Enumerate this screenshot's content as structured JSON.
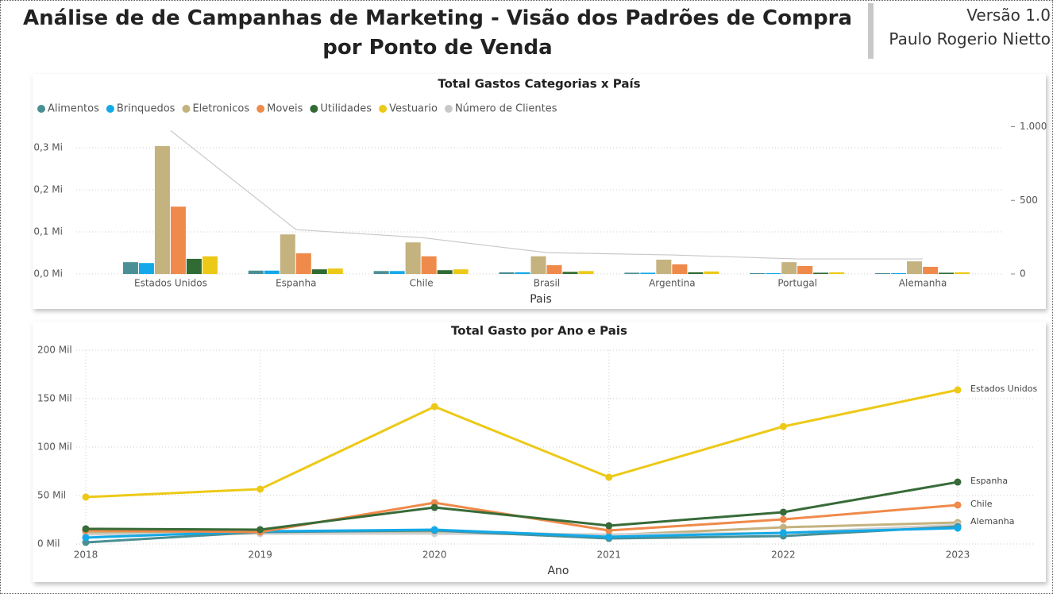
{
  "header": {
    "title": "Análise de de Campanhas de Marketing - Visão dos Padrões de Compra por Ponto de Venda",
    "version": "Versão 1.0",
    "author": "Paulo Rogerio Nietto"
  },
  "chart_data": [
    {
      "type": "bar",
      "title": "Total Gastos Categorias x País",
      "x_label": "Pais",
      "categories": [
        "Estados Unidos",
        "Espanha",
        "Chile",
        "Brasil",
        "Argentina",
        "Portugal",
        "Alemanha"
      ],
      "series": [
        {
          "name": "Alimentos",
          "color": "#4a8f94",
          "values": [
            0.028,
            0.008,
            0.007,
            0.004,
            0.003,
            0.002,
            0.002
          ]
        },
        {
          "name": "Brinquedos",
          "color": "#13a9e8",
          "values": [
            0.026,
            0.008,
            0.007,
            0.004,
            0.003,
            0.002,
            0.002
          ]
        },
        {
          "name": "Eletronicos",
          "color": "#c4b27f",
          "values": [
            0.304,
            0.094,
            0.075,
            0.042,
            0.034,
            0.028,
            0.03
          ]
        },
        {
          "name": "Moveis",
          "color": "#ef8a4a",
          "values": [
            0.16,
            0.049,
            0.042,
            0.021,
            0.023,
            0.019,
            0.017
          ]
        },
        {
          "name": "Utilidades",
          "color": "#2f6b33",
          "values": [
            0.036,
            0.011,
            0.009,
            0.005,
            0.004,
            0.003,
            0.003
          ]
        },
        {
          "name": "Vestuario",
          "color": "#edc917",
          "values": [
            0.042,
            0.013,
            0.011,
            0.007,
            0.006,
            0.004,
            0.004
          ]
        },
        {
          "name": "Número de Clientes",
          "color": "#c8c8c8",
          "type": "line",
          "axis": "y2",
          "values": [
            973,
            301,
            247,
            145,
            129,
            102,
            102
          ]
        }
      ],
      "ylim": [
        0,
        0.35
      ],
      "yticks": [
        {
          "value": 0,
          "label": "0,0 Mi"
        },
        {
          "value": 0.1,
          "label": "0,1 Mi"
        },
        {
          "value": 0.2,
          "label": "0,2 Mi"
        },
        {
          "value": 0.3,
          "label": "0,3 Mi"
        }
      ],
      "y2lim": [
        0,
        1000
      ],
      "y2ticks": [
        0,
        500,
        {
          "value": 1000,
          "label": "1.000"
        }
      ],
      "grid": true,
      "legend": "top-left"
    },
    {
      "type": "line",
      "title": "Total Gasto por Ano e Pais",
      "x_label": "Ano",
      "categories": [
        "2018",
        "2019",
        "2020",
        "2021",
        "2022",
        "2023"
      ],
      "series": [
        {
          "name": "Alemanha",
          "color": "#c4b27f",
          "values": [
            12.3,
            11.5,
            13,
            9,
            17.2,
            22.1
          ]
        },
        {
          "color": "#d0d0d0",
          "values": [
            9.8,
            10.7,
            10.7,
            9.8,
            11.5,
            19.7
          ]
        },
        {
          "color": "#4a8f94",
          "values": [
            1.6,
            12.3,
            13.9,
            5.7,
            8.2,
            18
          ]
        },
        {
          "color": "#13a9e8",
          "values": [
            6.6,
            13,
            14.8,
            7.4,
            11.5,
            16.4
          ]
        },
        {
          "name": "Chile",
          "color": "#ef8a4a",
          "values": [
            13.9,
            12.3,
            42.6,
            13.9,
            25.4,
            40.2
          ]
        },
        {
          "name": "Espanha",
          "color": "#376b38",
          "values": [
            15.6,
            14.8,
            37.7,
            18.9,
            32.8,
            63.9
          ]
        },
        {
          "name": "Estados Unidos",
          "color": "#edc917",
          "values": [
            48.4,
            56.6,
            141.8,
            68.9,
            121.3,
            159
          ]
        }
      ],
      "ylim": [
        0,
        200
      ],
      "yticks": [
        {
          "value": 0,
          "label": "0 Mil"
        },
        {
          "value": 50,
          "label": "50 Mil"
        },
        {
          "value": 100,
          "label": "100 Mil"
        },
        {
          "value": 150,
          "label": "150 Mil"
        },
        {
          "value": 200,
          "label": "200 Mil"
        }
      ],
      "grid": true
    }
  ]
}
